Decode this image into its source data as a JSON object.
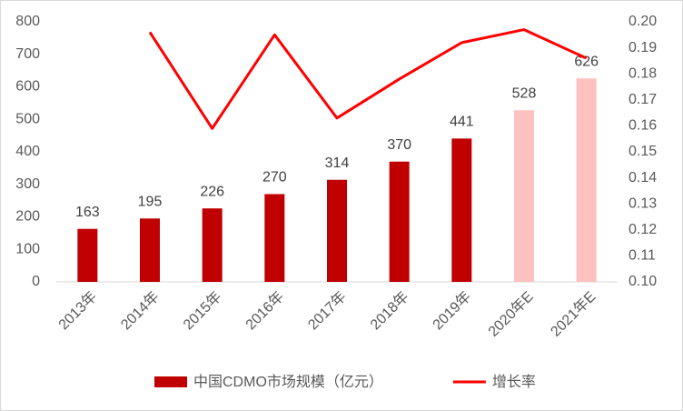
{
  "chart_data": {
    "type": "combo",
    "categories": [
      "2013年",
      "2014年",
      "2015年",
      "2016年",
      "2017年",
      "2018年",
      "2019年",
      "2020年E",
      "2021年E"
    ],
    "series": [
      {
        "name": "中国CDMO市场规模（亿元）",
        "type": "bar",
        "color": "#c00000",
        "colors": [
          "#c00000",
          "#c00000",
          "#c00000",
          "#c00000",
          "#c00000",
          "#c00000",
          "#c00000",
          "#ffc0c0",
          "#ffc0c0"
        ],
        "values": [
          163,
          195,
          226,
          270,
          314,
          370,
          441,
          528,
          626
        ]
      },
      {
        "name": "增长率",
        "type": "line",
        "axis": "y2",
        "color": "#ff0000",
        "values": [
          null,
          0.196,
          0.159,
          0.195,
          0.163,
          0.178,
          0.192,
          0.197,
          0.186
        ]
      }
    ],
    "ylim": [
      0,
      800
    ],
    "yticks": [
      0,
      100,
      200,
      300,
      400,
      500,
      600,
      700,
      800
    ],
    "y2lim": [
      0.1,
      0.2
    ],
    "y2ticks": [
      {
        "value": 0.1,
        "label": "0.10"
      },
      0.11,
      0.12,
      0.13,
      0.14,
      0.15,
      0.16,
      0.17,
      0.18,
      0.19,
      {
        "value": 0.2,
        "label": "0.20"
      }
    ],
    "legend": "bottom"
  }
}
